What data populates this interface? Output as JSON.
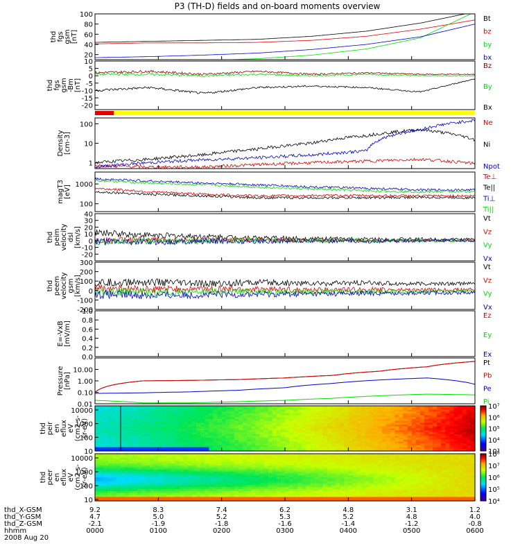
{
  "title": "P3 (TH-D) fields and on-board moments overview",
  "colors": {
    "black": "#000000",
    "red": "#e00000",
    "dark_red": "#8b0000",
    "green": "#00e000",
    "blue": "#0000cc",
    "yellow": "#ffff00",
    "axis": "#000000"
  },
  "chart_data": [
    {
      "type": "line",
      "id": "fgs_mag",
      "ylabel": [
        "thd",
        "fgs",
        "gsm",
        "[nT]"
      ],
      "ylim": [
        10,
        100
      ],
      "ytick_labels": [
        "20",
        "40",
        "60",
        "80",
        "100"
      ],
      "series": [
        {
          "name": "Bt",
          "values": [
            44,
            46,
            48,
            50,
            56,
            66,
            82,
            104
          ]
        },
        {
          "name": "bz",
          "values": [
            41,
            43,
            43,
            44,
            48,
            56,
            70,
            88
          ]
        },
        {
          "name": "by",
          "values": [
            5,
            6,
            8,
            12,
            19,
            31,
            53,
            104
          ]
        },
        {
          "name": "bx",
          "values": [
            14,
            16,
            19,
            23,
            30,
            40,
            55,
            80
          ]
        }
      ]
    },
    {
      "type": "line",
      "id": "fgs_detrended",
      "ylabel": [
        "thd",
        "fgs",
        "gsm",
        "-Bm",
        "[nT]"
      ],
      "ylim": [
        -23,
        10
      ],
      "ytick_labels": [
        "-20",
        "-15",
        "-10",
        "-5",
        "0",
        "5",
        "10"
      ],
      "series": [
        {
          "name": "Bz",
          "values": [
            2,
            3,
            1,
            3,
            1,
            2,
            1,
            1
          ]
        },
        {
          "name": "By",
          "values": [
            1,
            1,
            0,
            1,
            0,
            1,
            0,
            0
          ]
        },
        {
          "name": "Bx",
          "values": [
            -10,
            -8,
            -12,
            -8,
            -7,
            -8,
            -11,
            -2
          ]
        }
      ]
    },
    {
      "type": "line",
      "id": "density",
      "ylabel": [
        "Density",
        "[cm-3]"
      ],
      "ylim": [
        0.5,
        200
      ],
      "ytick_labels": [
        "1",
        "10",
        "100"
      ],
      "series": [
        {
          "name": "Ne",
          "values": [
            0.7,
            0.6,
            0.6,
            0.8,
            1.0,
            1.2,
            1.5,
            0.9
          ]
        },
        {
          "name": "Ni",
          "values": [
            1.0,
            1.5,
            2.5,
            5.0,
            10,
            25,
            50,
            15
          ]
        },
        {
          "name": "Npot",
          "values": [
            0.6,
            1.0,
            1.4,
            1.8,
            2.5,
            4.0,
            50,
            150
          ]
        }
      ]
    },
    {
      "type": "line",
      "id": "temperature",
      "ylabel": [
        "magT3",
        "[eV]"
      ],
      "ylim": [
        40,
        4000
      ],
      "ytick_labels": [
        "100",
        "1000"
      ],
      "series": [
        {
          "name": "Te⊥",
          "values": [
            600,
            400,
            300,
            250,
            260,
            260,
            250,
            250
          ]
        },
        {
          "name": "Te||",
          "values": [
            400,
            300,
            250,
            200,
            200,
            200,
            210,
            200
          ]
        },
        {
          "name": "Ti⊥",
          "values": [
            1800,
            1400,
            1100,
            900,
            700,
            600,
            500,
            500
          ]
        },
        {
          "name": "Ti||",
          "values": [
            1500,
            1100,
            900,
            700,
            550,
            450,
            400,
            420
          ]
        }
      ]
    },
    {
      "type": "line",
      "id": "velocity_dsl",
      "ylabel": [
        "thd",
        "peim",
        "velocity",
        "dsl",
        "[km/s]"
      ],
      "ylim": [
        -30,
        40
      ],
      "ytick_labels": [
        "-20",
        "-10",
        "0",
        "10",
        "20",
        "30",
        "40"
      ],
      "series": [
        {
          "name": "Vt",
          "values": [
            12,
            8,
            6,
            4,
            3,
            2,
            2,
            2
          ]
        },
        {
          "name": "Vz",
          "values": [
            0,
            1,
            0,
            1,
            0,
            0,
            0,
            0
          ]
        },
        {
          "name": "Vy",
          "values": [
            -2,
            -1,
            -1,
            0,
            0,
            0,
            0,
            0
          ]
        },
        {
          "name": "Vx",
          "values": [
            -1,
            -2,
            -1,
            -1,
            0,
            -1,
            0,
            0
          ]
        }
      ]
    },
    {
      "type": "line",
      "id": "velocity_gsm",
      "ylabel": [
        "thd",
        "peem",
        "velocity",
        "gsm",
        "[km/s]"
      ],
      "ylim": [
        -200,
        300
      ],
      "ytick_labels": [
        "-200",
        "-100",
        "0",
        "100",
        "200",
        "300"
      ],
      "series": [
        {
          "name": "Vt",
          "values": [
            80,
            90,
            70,
            85,
            75,
            80,
            70,
            75
          ]
        },
        {
          "name": "Vz",
          "values": [
            20,
            10,
            15,
            10,
            5,
            10,
            5,
            10
          ]
        },
        {
          "name": "Vy",
          "values": [
            -10,
            -20,
            -15,
            -10,
            -15,
            -10,
            -10,
            -5
          ]
        },
        {
          "name": "Vx",
          "values": [
            -40,
            -50,
            -45,
            -40,
            -35,
            -30,
            -25,
            -20
          ]
        }
      ]
    },
    {
      "type": "line",
      "id": "efield",
      "ylabel": [
        "E=-VxB",
        "[mV/m]"
      ],
      "ylim": [
        0,
        1
      ],
      "ytick_labels": [
        "0.0",
        "0.2",
        "0.4",
        "0.6",
        "0.8",
        "1.0"
      ],
      "series": [
        {
          "name": "Ez",
          "values": []
        },
        {
          "name": "Ey",
          "values": []
        },
        {
          "name": "Ex",
          "values": []
        }
      ]
    },
    {
      "type": "line",
      "id": "pressure",
      "ylabel": [
        "Pressure",
        "[nPa]"
      ],
      "ylim": [
        0.01,
        100
      ],
      "ytick_labels": [
        "0.01",
        "0.10",
        "1.00",
        "10.00"
      ],
      "series": [
        {
          "name": "Pt",
          "values": [
            0.1,
            1.0,
            1.1,
            1.3,
            1.8,
            3.0,
            7,
            17,
            50
          ]
        },
        {
          "name": "Pb",
          "values": [
            0.1,
            1.0,
            1.1,
            1.3,
            1.8,
            3.0,
            7,
            17,
            50
          ]
        },
        {
          "name": "Pe",
          "values": [
            0.08,
            0.09,
            0.11,
            0.15,
            0.25,
            0.6,
            1.2,
            1.8,
            0.5
          ]
        },
        {
          "name": "Pi",
          "values": [
            0.02,
            0.012,
            0.012,
            0.015,
            0.02,
            0.03,
            0.05,
            0.07,
            0.06
          ]
        }
      ]
    },
    {
      "type": "heatmap",
      "id": "peir_spectrogram",
      "ylabel": [
        "thd",
        "peir",
        "en",
        "eflux",
        "eV",
        "(cm2 s-",
        "sr-eV)"
      ],
      "ylim": [
        10,
        20000
      ],
      "ytick_labels": [
        "10",
        "100",
        "1000",
        "10000"
      ],
      "colorbar_labels": [
        "10³",
        "10⁴",
        "10⁵",
        "10⁶",
        "10⁷"
      ],
      "ytick_exp": [
        1,
        2,
        3,
        4
      ],
      "cbar_exp": [
        3,
        4,
        5,
        6,
        7
      ]
    },
    {
      "type": "heatmap",
      "id": "peer_spectrogram",
      "ylabel": [
        "thd",
        "peer",
        "en",
        "eflux",
        "eV",
        "(cm2 s-",
        "sr-eV)"
      ],
      "ylim": [
        8,
        20000
      ],
      "ytick_labels": [
        "10",
        "100",
        "1000",
        "10000"
      ],
      "colorbar_labels": [
        "10⁴",
        "10⁵",
        "10⁶",
        "10⁷",
        "10⁸"
      ],
      "ytick_exp": [
        1,
        2,
        3,
        4
      ],
      "cbar_exp": [
        4,
        5,
        6,
        7,
        8
      ]
    }
  ],
  "bar_strip": {
    "segments": [
      {
        "color": "red",
        "start": 0.0,
        "end": 0.05
      },
      {
        "color": "yellow",
        "start": 0.05,
        "end": 1.0
      }
    ]
  },
  "time_axis": {
    "row_labels": [
      "thd_X-GSM",
      "thd_Y-GSM",
      "thd_Z-GSM",
      "hhmm"
    ],
    "date": "2008 Aug 20",
    "ticks": [
      {
        "x_gsm": "9.2",
        "y_gsm": "4.7",
        "z_gsm": "-2.1",
        "hhmm": "0000"
      },
      {
        "x_gsm": "8.3",
        "y_gsm": "5.0",
        "z_gsm": "-1.9",
        "hhmm": "0100"
      },
      {
        "x_gsm": "7.4",
        "y_gsm": "5.2",
        "z_gsm": "-1.8",
        "hhmm": "0200"
      },
      {
        "x_gsm": "6.2",
        "y_gsm": "5.3",
        "z_gsm": "-1.6",
        "hhmm": "0300"
      },
      {
        "x_gsm": "4.8",
        "y_gsm": "5.2",
        "z_gsm": "-1.4",
        "hhmm": "0400"
      },
      {
        "x_gsm": "3.1",
        "y_gsm": "4.8",
        "z_gsm": "-1.2",
        "hhmm": "0500"
      },
      {
        "x_gsm": "1.2",
        "y_gsm": "4.0",
        "z_gsm": "-0.8",
        "hhmm": "0600"
      }
    ]
  }
}
